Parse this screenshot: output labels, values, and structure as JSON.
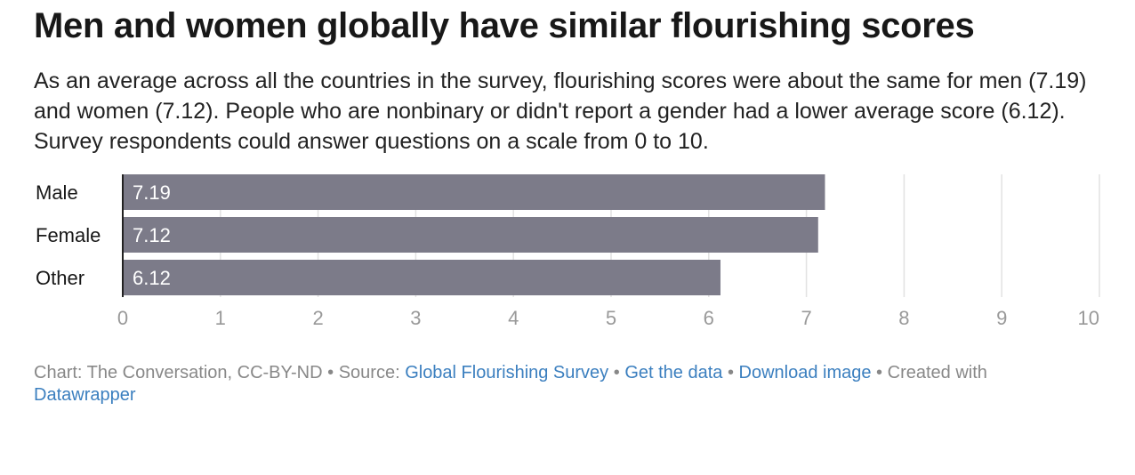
{
  "title": "Men and women globally have similar flourishing scores",
  "subtitle": "As an average across all the countries in the survey, flourishing scores were about the same for men (7.19) and women (7.12). People who are nonbinary or didn't report a gender had a lower average score (6.12). Survey respondents could answer questions on a scale from 0 to 10.",
  "chart_data": {
    "type": "bar",
    "orientation": "horizontal",
    "categories": [
      "Male",
      "Female",
      "Other"
    ],
    "values": [
      7.19,
      7.12,
      6.12
    ],
    "value_labels": [
      "7.19",
      "7.12",
      "6.12"
    ],
    "xlim": [
      0,
      10
    ],
    "xticks": [
      "0",
      "1",
      "2",
      "3",
      "4",
      "5",
      "6",
      "7",
      "8",
      "9",
      "10"
    ],
    "grid": "vertical",
    "bar_color": "#7c7b89",
    "label_color": "#ffffff",
    "xlabel": "",
    "ylabel": ""
  },
  "footer": {
    "chart_credit": "Chart: The Conversation, CC-BY-ND",
    "sep1": " • ",
    "source_prefix": "Source: ",
    "source_link": "Global Flourishing Survey",
    "sep2": " • ",
    "get_data": "Get the data",
    "sep3": " • ",
    "download": "Download image",
    "sep4": " • ",
    "created_with": "Created with ",
    "tool_link": "Datawrapper"
  },
  "colors": {
    "link": "#3b7fbf",
    "muted": "#888888",
    "grid": "#e2e2e2",
    "axis": "#222222"
  }
}
